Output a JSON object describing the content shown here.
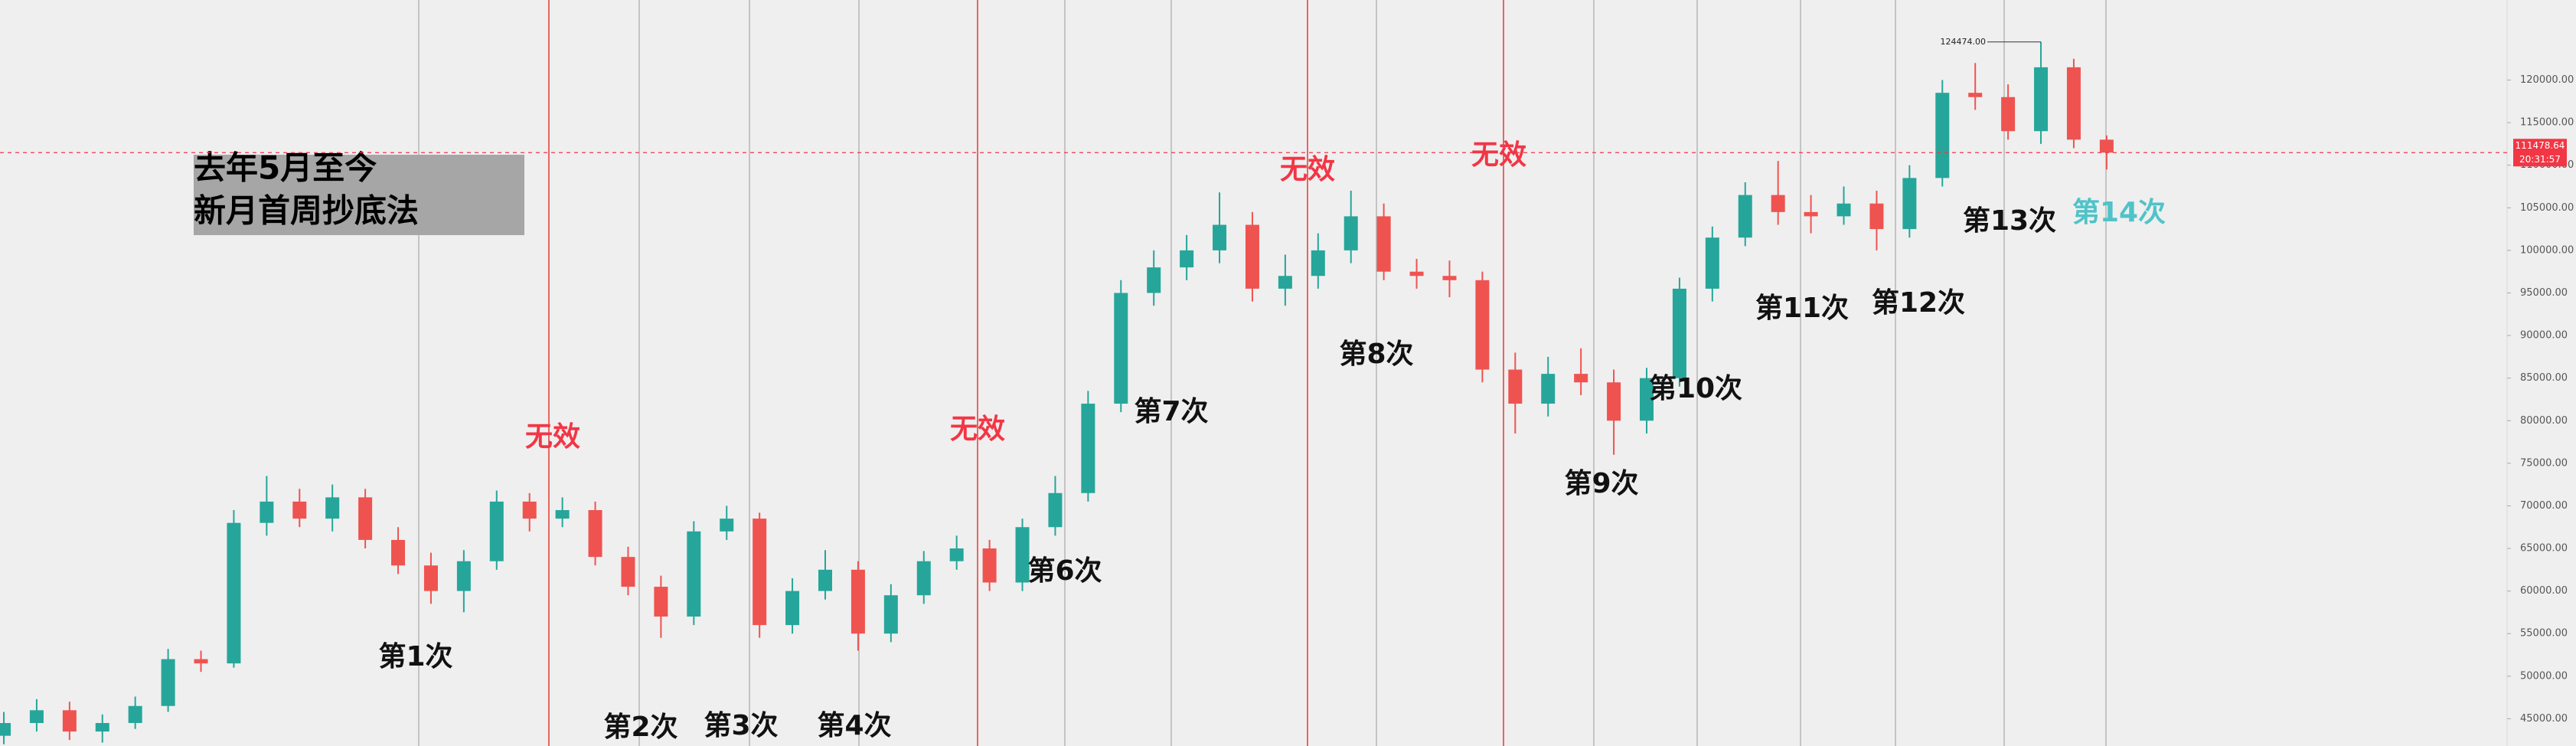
{
  "chart_data": {
    "type": "candlestick",
    "title_lines": [
      "去年5月至今",
      "新月首周抄底法"
    ],
    "up_color": "#26a69a",
    "down_color": "#ef5350",
    "ylim": [
      41800,
      129400
    ],
    "yticks": [
      {
        "value": 45000,
        "label": "45000.00"
      },
      {
        "value": 50000,
        "label": "50000.00"
      },
      {
        "value": 55000,
        "label": "55000.00"
      },
      {
        "value": 60000,
        "label": "60000.00"
      },
      {
        "value": 65000,
        "label": "65000.00"
      },
      {
        "value": 70000,
        "label": "70000.00"
      },
      {
        "value": 75000,
        "label": "75000.00"
      },
      {
        "value": 80000,
        "label": "80000.00"
      },
      {
        "value": 85000,
        "label": "85000.00"
      },
      {
        "value": 90000,
        "label": "90000.00"
      },
      {
        "value": 95000,
        "label": "95000.00"
      },
      {
        "value": 100000,
        "label": "100000.00"
      },
      {
        "value": 105000,
        "label": "105000.00"
      },
      {
        "value": 110000,
        "label": "110000.00"
      },
      {
        "value": 115000,
        "label": "115000.00"
      },
      {
        "value": 120000,
        "label": "120000.00"
      }
    ],
    "open": [
      43000,
      44500,
      46000,
      43500,
      44500,
      46500,
      52000,
      51500,
      68000,
      70500,
      68500,
      71000,
      66000,
      63000,
      60000,
      63500,
      70500,
      68500,
      69500,
      64000,
      60500,
      57000,
      67000,
      68500,
      56000,
      60000,
      62500,
      55000,
      59500,
      63500,
      65000,
      61000,
      67500,
      71500,
      82000,
      95000,
      98000,
      100000,
      103000,
      95500,
      97000,
      100000,
      104000,
      97500,
      97000,
      96500,
      86000,
      82000,
      85500,
      84500,
      80000,
      85000,
      95500,
      101500,
      106500,
      104500,
      104000,
      105500,
      102500,
      108500,
      118500,
      118000,
      114000,
      121500,
      113000
    ],
    "high": [
      45800,
      47300,
      47000,
      45500,
      47600,
      53200,
      53000,
      69500,
      73500,
      72000,
      72500,
      72000,
      67500,
      64500,
      64800,
      71800,
      71500,
      71000,
      70500,
      65200,
      61800,
      68200,
      70000,
      69200,
      61500,
      64800,
      63500,
      60800,
      64700,
      66500,
      66000,
      68500,
      73500,
      83500,
      96500,
      100000,
      101800,
      106800,
      104500,
      99500,
      102000,
      107000,
      105500,
      99000,
      98800,
      97500,
      88000,
      87500,
      88500,
      86000,
      86200,
      96800,
      102800,
      108000,
      110500,
      106500,
      107500,
      107000,
      110000,
      120000,
      122000,
      119500,
      124474,
      122500,
      113500
    ],
    "low": [
      42000,
      43500,
      42500,
      42200,
      43800,
      45800,
      50500,
      51000,
      66500,
      67500,
      67000,
      65000,
      62000,
      58500,
      57500,
      62500,
      67000,
      67500,
      63000,
      59500,
      54500,
      56000,
      66000,
      54500,
      55000,
      59000,
      53000,
      54000,
      58500,
      62500,
      60000,
      60000,
      66500,
      70500,
      81000,
      93500,
      96500,
      98500,
      94000,
      93500,
      95500,
      98500,
      96500,
      95500,
      94500,
      84500,
      78500,
      80500,
      83000,
      76000,
      78500,
      84000,
      94000,
      100500,
      103000,
      102000,
      103000,
      100000,
      101500,
      107500,
      116500,
      113000,
      112500,
      112000,
      109500
    ],
    "close": [
      44500,
      46000,
      43500,
      44500,
      46500,
      52000,
      51500,
      68000,
      70500,
      68500,
      71000,
      66000,
      63000,
      60000,
      63500,
      70500,
      68500,
      69500,
      64000,
      60500,
      57000,
      67000,
      68500,
      56000,
      60000,
      62500,
      55000,
      59500,
      63500,
      65000,
      61000,
      67500,
      71500,
      82000,
      95000,
      98000,
      100000,
      103000,
      95500,
      97000,
      100000,
      104000,
      97500,
      97000,
      96500,
      86000,
      82000,
      85500,
      84500,
      80000,
      85000,
      95500,
      101500,
      106500,
      104500,
      104000,
      105500,
      102500,
      108500,
      118500,
      118000,
      114000,
      121500,
      113000,
      111478.64
    ],
    "last_price": {
      "value": 111478.64,
      "label": "111478.64",
      "color": "#f23645"
    },
    "countdown": "20:31:57",
    "max_marker": {
      "value": 124474,
      "label": "124474.00"
    },
    "annotations": [
      {
        "text": "第1次",
        "color": "#111111"
      },
      {
        "text": "无效",
        "color": "#f23645"
      },
      {
        "text": "第2次",
        "color": "#111111"
      },
      {
        "text": "第3次",
        "color": "#111111"
      },
      {
        "text": "第4次",
        "color": "#111111"
      },
      {
        "text": "无效",
        "color": "#f23645"
      },
      {
        "text": "第6次",
        "color": "#111111"
      },
      {
        "text": "第7次",
        "color": "#111111"
      },
      {
        "text": "无效",
        "color": "#f23645"
      },
      {
        "text": "第8次",
        "color": "#111111"
      },
      {
        "text": "无效",
        "color": "#f23645"
      },
      {
        "text": "第9次",
        "color": "#111111"
      },
      {
        "text": "第10次",
        "color": "#111111"
      },
      {
        "text": "第11次",
        "color": "#111111"
      },
      {
        "text": "第12次",
        "color": "#111111"
      },
      {
        "text": "第13次",
        "color": "#111111"
      },
      {
        "text": "第14次",
        "color": "#4fc3c8"
      }
    ]
  }
}
